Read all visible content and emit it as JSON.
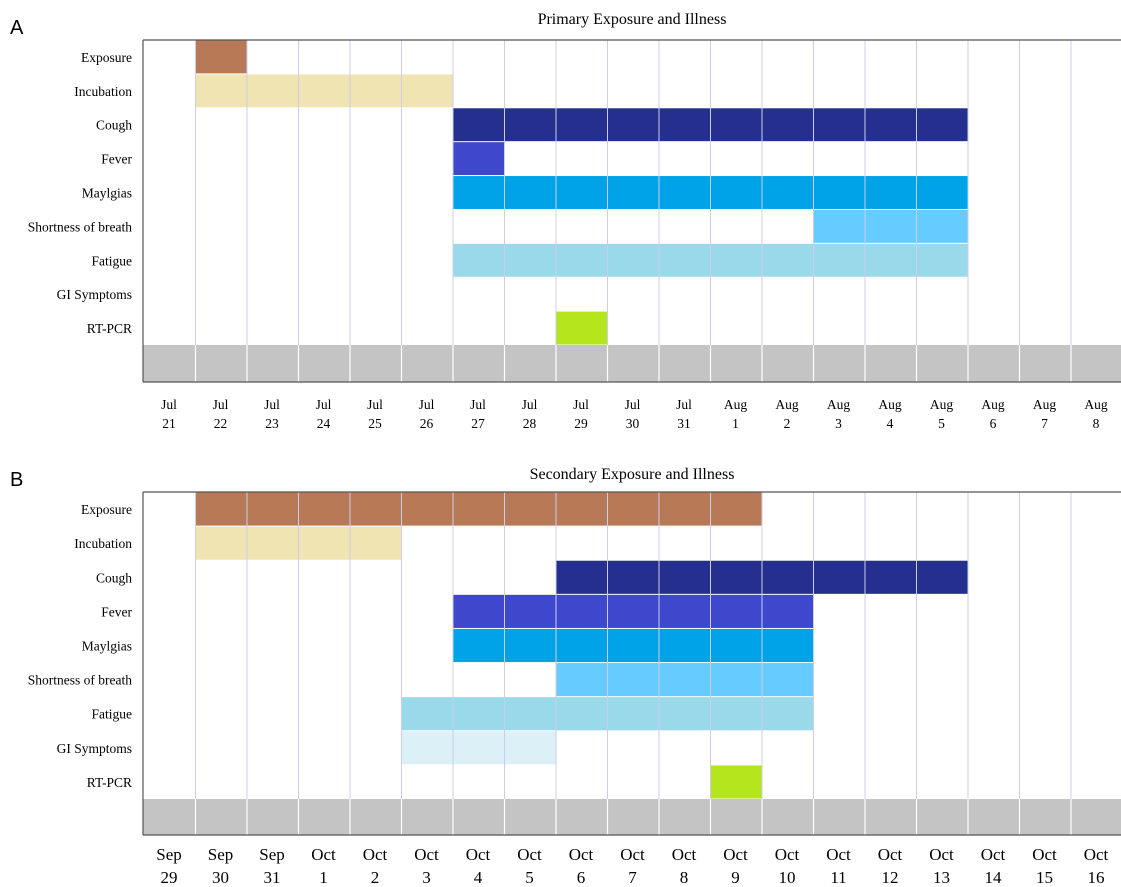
{
  "chart_data": [
    {
      "type": "gantt",
      "panel_label": "A",
      "title": "Primary Exposure and Illness",
      "categories": [
        "Exposure",
        "Incubation",
        "Cough",
        "Fever",
        "Maylgias",
        "Shortness of breath",
        "Fatigue",
        "GI Symptoms",
        "RT-PCR"
      ],
      "dates": [
        {
          "month": "Jul",
          "day": "21"
        },
        {
          "month": "Jul",
          "day": "22"
        },
        {
          "month": "Jul",
          "day": "23"
        },
        {
          "month": "Jul",
          "day": "24"
        },
        {
          "month": "Jul",
          "day": "25"
        },
        {
          "month": "Jul",
          "day": "26"
        },
        {
          "month": "Jul",
          "day": "27"
        },
        {
          "month": "Jul",
          "day": "28"
        },
        {
          "month": "Jul",
          "day": "29"
        },
        {
          "month": "Jul",
          "day": "30"
        },
        {
          "month": "Jul",
          "day": "31"
        },
        {
          "month": "Aug",
          "day": "1"
        },
        {
          "month": "Aug",
          "day": "2"
        },
        {
          "month": "Aug",
          "day": "3"
        },
        {
          "month": "Aug",
          "day": "4"
        },
        {
          "month": "Aug",
          "day": "5"
        },
        {
          "month": "Aug",
          "day": "6"
        },
        {
          "month": "Aug",
          "day": "7"
        },
        {
          "month": "Aug",
          "day": "8"
        }
      ],
      "series": [
        {
          "category": "Exposure",
          "segments": [
            [
              "Jul 22",
              "Jul 22"
            ]
          ],
          "color": "#b87a56"
        },
        {
          "category": "Incubation",
          "segments": [
            [
              "Jul 22",
              "Jul 26"
            ]
          ],
          "color": "#f0e4b2"
        },
        {
          "category": "Cough",
          "segments": [
            [
              "Jul 27",
              "Aug 5"
            ]
          ],
          "color": "#25308e"
        },
        {
          "category": "Fever",
          "segments": [
            [
              "Jul 27",
              "Jul 27"
            ]
          ],
          "color": "#3f48cc"
        },
        {
          "category": "Maylgias",
          "segments": [
            [
              "Jul 27",
              "Aug 5"
            ]
          ],
          "color": "#00a2e8"
        },
        {
          "category": "Shortness of breath",
          "segments": [
            [
              "Aug 3",
              "Aug 5"
            ]
          ],
          "color": "#66ccff"
        },
        {
          "category": "Fatigue",
          "segments": [
            [
              "Jul 27",
              "Aug 5"
            ]
          ],
          "color": "#99d9ea"
        },
        {
          "category": "GI Symptoms",
          "segments": [],
          "color": "#dcf0f8"
        },
        {
          "category": "RT-PCR",
          "segments": [
            [
              "Jul 29",
              "Jul 29"
            ]
          ],
          "color": "#b5e61d"
        }
      ]
    },
    {
      "type": "gantt",
      "panel_label": "B",
      "title": "Secondary Exposure and Illness",
      "categories": [
        "Exposure",
        "Incubation",
        "Cough",
        "Fever",
        "Maylgias",
        "Shortness of breath",
        "Fatigue",
        "GI Symptoms",
        "RT-PCR"
      ],
      "dates": [
        {
          "month": "Sep",
          "day": "29"
        },
        {
          "month": "Sep",
          "day": "30"
        },
        {
          "month": "Sep",
          "day": "31"
        },
        {
          "month": "Oct",
          "day": "1"
        },
        {
          "month": "Oct",
          "day": "2"
        },
        {
          "month": "Oct",
          "day": "3"
        },
        {
          "month": "Oct",
          "day": "4"
        },
        {
          "month": "Oct",
          "day": "5"
        },
        {
          "month": "Oct",
          "day": "6"
        },
        {
          "month": "Oct",
          "day": "7"
        },
        {
          "month": "Oct",
          "day": "8"
        },
        {
          "month": "Oct",
          "day": "9"
        },
        {
          "month": "Oct",
          "day": "10"
        },
        {
          "month": "Oct",
          "day": "11"
        },
        {
          "month": "Oct",
          "day": "12"
        },
        {
          "month": "Oct",
          "day": "13"
        },
        {
          "month": "Oct",
          "day": "14"
        },
        {
          "month": "Oct",
          "day": "15"
        },
        {
          "month": "Oct",
          "day": "16"
        }
      ],
      "series": [
        {
          "category": "Exposure",
          "segments": [
            [
              "Sep 30",
              "Oct 9"
            ]
          ],
          "color": "#b87a56"
        },
        {
          "category": "Incubation",
          "segments": [
            [
              "Sep 30",
              "Oct 2"
            ]
          ],
          "color": "#f0e4b2"
        },
        {
          "category": "Cough",
          "segments": [
            [
              "Oct 6",
              "Oct 13"
            ]
          ],
          "color": "#25308e"
        },
        {
          "category": "Fever",
          "segments": [
            [
              "Oct 4",
              "Oct 10"
            ]
          ],
          "color": "#3f48cc"
        },
        {
          "category": "Maylgias",
          "segments": [
            [
              "Oct 4",
              "Oct 10"
            ]
          ],
          "color": "#00a2e8"
        },
        {
          "category": "Shortness of breath",
          "segments": [
            [
              "Oct 6",
              "Oct 10"
            ]
          ],
          "color": "#66ccff"
        },
        {
          "category": "Fatigue",
          "segments": [
            [
              "Oct 3",
              "Oct 10"
            ]
          ],
          "color": "#99d9ea"
        },
        {
          "category": "GI Symptoms",
          "segments": [
            [
              "Oct 3",
              "Oct 5"
            ]
          ],
          "color": "#dcf0f8"
        },
        {
          "category": "RT-PCR",
          "segments": [
            [
              "Oct 9",
              "Oct 9"
            ]
          ],
          "color": "#b5e61d"
        }
      ]
    }
  ],
  "colors": {
    "timeline_bar": "#c4c4c4",
    "grid_line": "#cdcdeb",
    "frame": "#555555"
  }
}
